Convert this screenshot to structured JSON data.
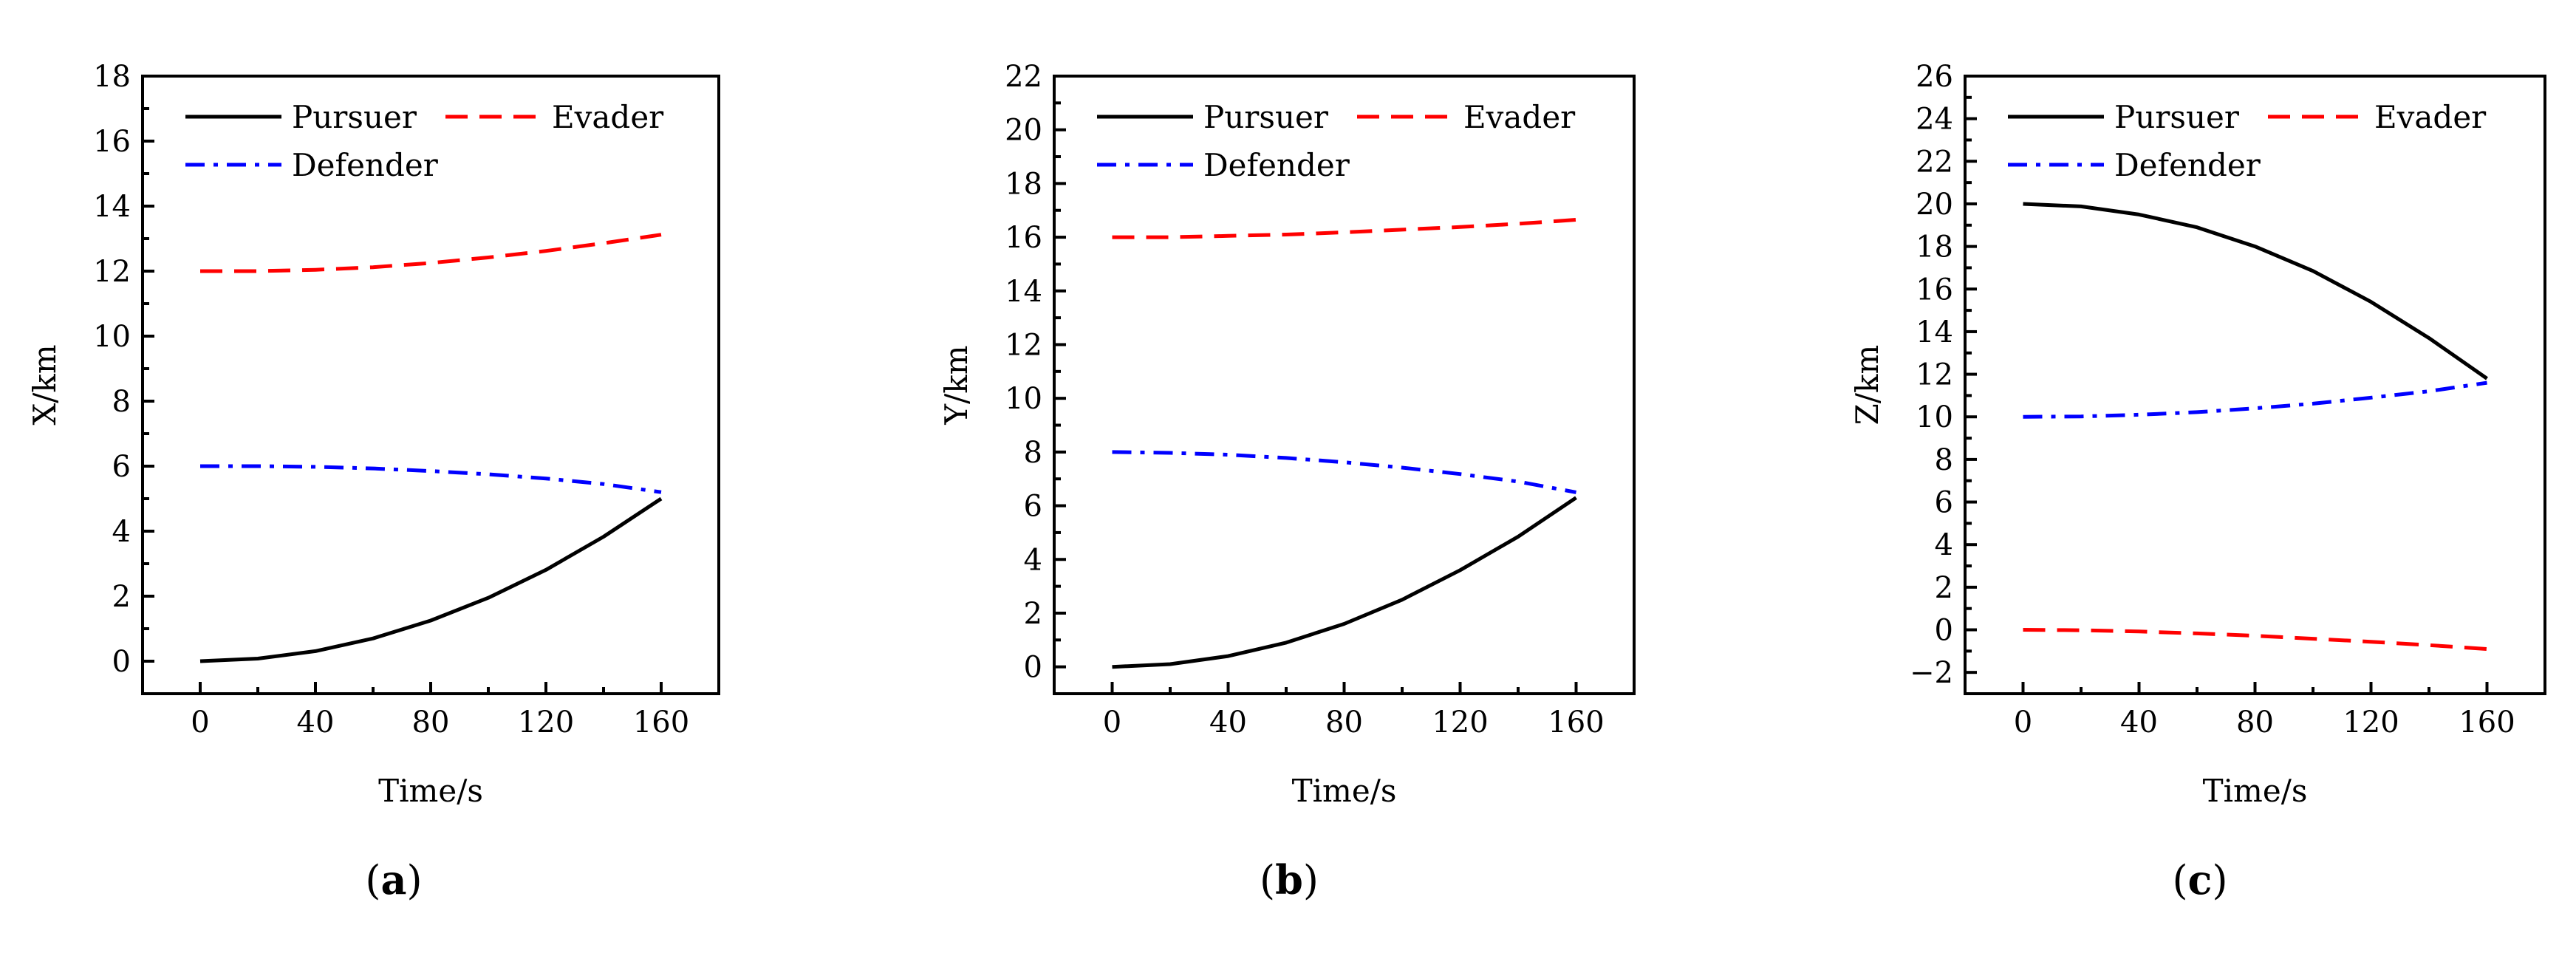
{
  "colors": {
    "pursuer": "#000000",
    "evader": "#ff0000",
    "defender": "#0000ff"
  },
  "legend": {
    "pursuer": "Pursuer",
    "evader": "Evader",
    "defender": "Defender"
  },
  "chart_data": [
    {
      "type": "line",
      "panel_label_parts": [
        "(",
        "a",
        ")"
      ],
      "xlabel": "Time/s",
      "ylabel": "X/km",
      "xlim": [
        -20,
        180
      ],
      "ylim": [
        -1,
        18
      ],
      "xticks": [
        0,
        40,
        80,
        120,
        160
      ],
      "yticks": [
        0,
        2,
        4,
        6,
        8,
        10,
        12,
        14,
        16,
        18
      ],
      "x": [
        0,
        20,
        40,
        60,
        80,
        100,
        120,
        140,
        160
      ],
      "series": [
        {
          "key": "pursuer",
          "name": "Pursuer",
          "style": "solid",
          "values": [
            0,
            0.08,
            0.31,
            0.7,
            1.25,
            1.95,
            2.81,
            3.83,
            5.0
          ]
        },
        {
          "key": "evader",
          "name": "Evader",
          "style": "dashed",
          "values": [
            12.0,
            12.0,
            12.04,
            12.12,
            12.25,
            12.42,
            12.62,
            12.86,
            13.12
          ]
        },
        {
          "key": "defender",
          "name": "Defender",
          "style": "dashdot",
          "values": [
            6.0,
            6.0,
            5.98,
            5.93,
            5.85,
            5.75,
            5.62,
            5.45,
            5.2
          ]
        }
      ]
    },
    {
      "type": "line",
      "panel_label_parts": [
        "(",
        "b",
        ")"
      ],
      "xlabel": "Time/s",
      "ylabel": "Y/km",
      "xlim": [
        -20,
        180
      ],
      "ylim": [
        -1,
        22
      ],
      "xticks": [
        0,
        40,
        80,
        120,
        160
      ],
      "yticks": [
        0,
        2,
        4,
        6,
        8,
        10,
        12,
        14,
        16,
        18,
        20,
        22
      ],
      "x": [
        0,
        20,
        40,
        60,
        80,
        100,
        120,
        140,
        160
      ],
      "series": [
        {
          "key": "pursuer",
          "name": "Pursuer",
          "style": "solid",
          "values": [
            0,
            0.1,
            0.4,
            0.9,
            1.6,
            2.5,
            3.6,
            4.85,
            6.3
          ]
        },
        {
          "key": "evader",
          "name": "Evader",
          "style": "dashed",
          "values": [
            16.0,
            16.0,
            16.05,
            16.1,
            16.18,
            16.28,
            16.38,
            16.5,
            16.65
          ]
        },
        {
          "key": "defender",
          "name": "Defender",
          "style": "dashdot",
          "values": [
            8.0,
            7.97,
            7.9,
            7.78,
            7.62,
            7.42,
            7.18,
            6.9,
            6.5
          ]
        }
      ]
    },
    {
      "type": "line",
      "panel_label_parts": [
        "(",
        "c",
        ")"
      ],
      "xlabel": "Time/s",
      "ylabel": "Z/km",
      "xlim": [
        -20,
        180
      ],
      "ylim": [
        -3,
        26
      ],
      "xticks": [
        0,
        40,
        80,
        120,
        160
      ],
      "yticks": [
        -2,
        0,
        2,
        4,
        6,
        8,
        10,
        12,
        14,
        16,
        18,
        20,
        22,
        24,
        26
      ],
      "x": [
        0,
        20,
        40,
        60,
        80,
        100,
        120,
        140,
        160
      ],
      "series": [
        {
          "key": "pursuer",
          "name": "Pursuer",
          "style": "solid",
          "values": [
            20.0,
            19.88,
            19.5,
            18.9,
            18.0,
            16.85,
            15.4,
            13.7,
            11.8
          ]
        },
        {
          "key": "evader",
          "name": "Evader",
          "style": "dashed",
          "values": [
            0,
            -0.02,
            -0.08,
            -0.17,
            -0.28,
            -0.42,
            -0.56,
            -0.72,
            -0.9
          ]
        },
        {
          "key": "defender",
          "name": "Defender",
          "style": "dashdot",
          "values": [
            10.0,
            10.02,
            10.1,
            10.22,
            10.4,
            10.62,
            10.9,
            11.2,
            11.6
          ]
        }
      ]
    }
  ]
}
